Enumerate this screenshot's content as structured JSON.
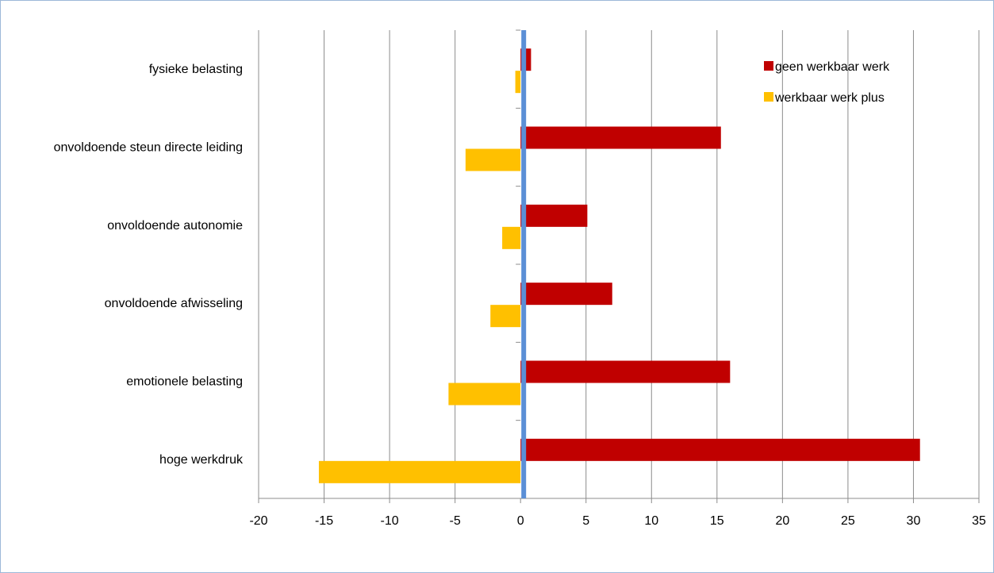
{
  "chart_data": {
    "type": "bar",
    "orientation": "horizontal",
    "categories": [
      "fysieke belasting",
      "onvoldoende steun directe leiding",
      "onvoldoende autonomie",
      "onvoldoende afwisseling",
      "emotionele belasting",
      "hoge werkdruk "
    ],
    "series": [
      {
        "name": "geen werkbaar werk",
        "color": "#c00000",
        "values": [
          0.8,
          15.3,
          5.1,
          7.0,
          16.0,
          30.5
        ]
      },
      {
        "name": "werkbaar werk plus",
        "color": "#ffc000",
        "values": [
          -0.4,
          -4.2,
          -1.4,
          -2.3,
          -5.5,
          -15.4
        ]
      }
    ],
    "xlim": [
      -20,
      35
    ],
    "xticks": [
      "-20",
      "-15",
      "-10",
      "-5",
      "0",
      "5",
      "10",
      "15",
      "20",
      "25",
      "30",
      "35"
    ],
    "grid": "vertical",
    "zero_line_color": "#5b8fd6",
    "legend": "top-right",
    "title": "",
    "xlabel": "",
    "ylabel": ""
  }
}
